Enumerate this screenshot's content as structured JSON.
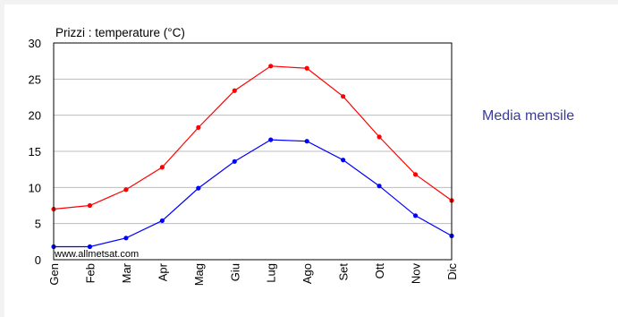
{
  "side_label": "Media mensile",
  "chart_data": {
    "type": "line",
    "title": "Prizzi : temperature (°C)",
    "xlabel": "",
    "ylabel": "",
    "categories": [
      "Gen",
      "Feb",
      "Mar",
      "Apr",
      "Mag",
      "Giu",
      "Lug",
      "Ago",
      "Set",
      "Ott",
      "Nov",
      "Dic"
    ],
    "ylim": [
      0,
      30
    ],
    "yticks": [
      0,
      5,
      10,
      15,
      20,
      25,
      30
    ],
    "grid": "horizontal",
    "watermark": "www.allmetsat.com",
    "series": [
      {
        "color": "#ff0000",
        "values": [
          7.0,
          7.5,
          9.7,
          12.8,
          18.3,
          23.4,
          26.8,
          26.5,
          22.6,
          17.0,
          11.8,
          8.2
        ]
      },
      {
        "color": "#0000ff",
        "values": [
          1.8,
          1.8,
          3.0,
          5.4,
          9.9,
          13.6,
          16.6,
          16.4,
          13.8,
          10.2,
          6.1,
          3.3
        ]
      }
    ]
  }
}
